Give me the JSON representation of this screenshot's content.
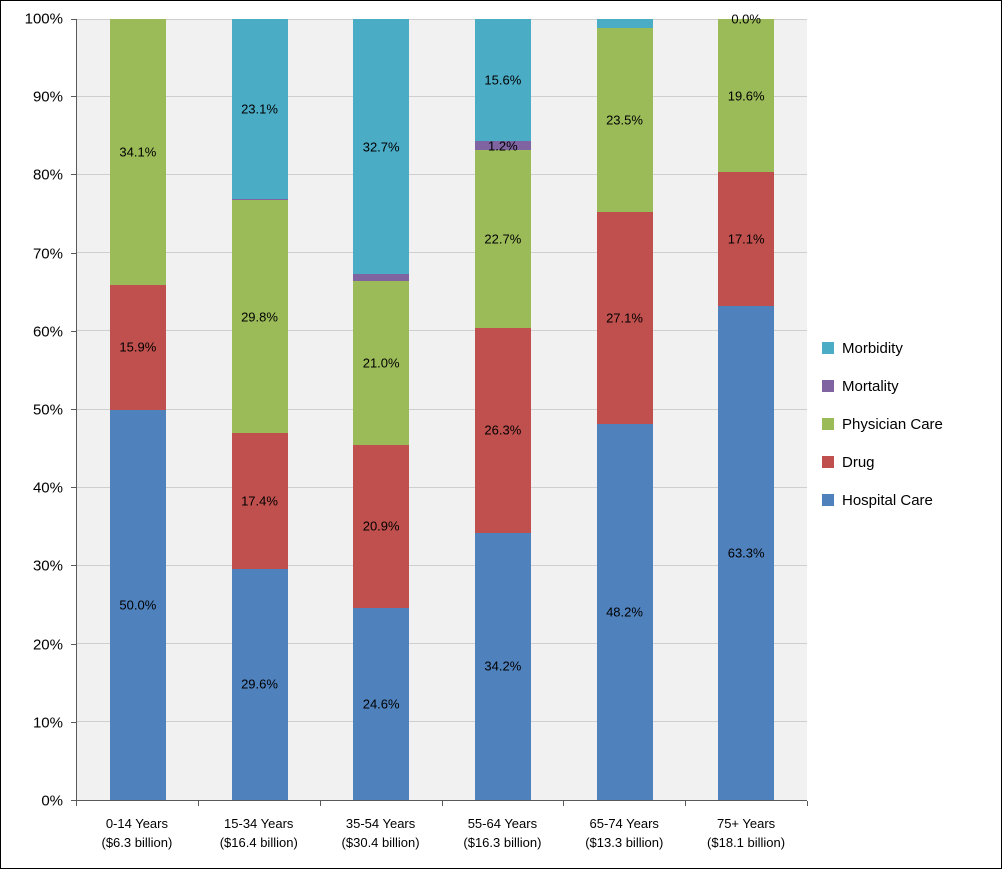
{
  "chart_data": {
    "type": "bar",
    "stacked": true,
    "units": "percent",
    "title": "",
    "xlabel": "",
    "ylabel": "",
    "ylim": [
      0,
      100
    ],
    "ytick_step": 10,
    "ytick_labels": [
      "0%",
      "10%",
      "20%",
      "30%",
      "40%",
      "50%",
      "60%",
      "70%",
      "80%",
      "90%",
      "100%"
    ],
    "grid": true,
    "plot_bg": "#F1F1F1",
    "gridline_color": "#CFCFCF",
    "axis_color": "#595959",
    "categories": [
      {
        "line1": "0-14 Years",
        "line2": "($6.3 billion)"
      },
      {
        "line1": "15-34 Years",
        "line2": "($16.4 billion)"
      },
      {
        "line1": "35-54 Years",
        "line2": "($30.4 billion)"
      },
      {
        "line1": "55-64 Years",
        "line2": "($16.3 billion)"
      },
      {
        "line1": "65-74 Years",
        "line2": "($13.3 billion)"
      },
      {
        "line1": "75+ Years",
        "line2": "($18.1 billion)"
      }
    ],
    "series": [
      {
        "name": "Hospital Care",
        "color": "#4F81BD",
        "values": [
          50.0,
          29.6,
          24.6,
          34.2,
          48.2,
          63.3
        ],
        "labels": [
          "50.0%",
          "29.6%",
          "24.6%",
          "34.2%",
          "48.2%",
          "63.3%"
        ]
      },
      {
        "name": "Drug",
        "color": "#C0504D",
        "values": [
          15.9,
          17.4,
          20.9,
          26.3,
          27.1,
          17.1
        ],
        "labels": [
          "15.9%",
          "17.4%",
          "20.9%",
          "26.3%",
          "27.1%",
          "17.1%"
        ]
      },
      {
        "name": "Physician Care",
        "color": "#9BBB59",
        "values": [
          34.1,
          29.8,
          21.0,
          22.7,
          23.5,
          19.6
        ],
        "labels": [
          "34.1%",
          "29.8%",
          "21.0%",
          "22.7%",
          "23.5%",
          "19.6%"
        ]
      },
      {
        "name": "Mortality",
        "color": "#8064A2",
        "values": [
          0.0,
          0.1,
          0.8,
          1.2,
          0.0,
          0.0
        ],
        "labels": [
          null,
          null,
          null,
          "1.2%",
          null,
          null
        ]
      },
      {
        "name": "Morbidity",
        "color": "#4BACC6",
        "values": [
          0.0,
          23.1,
          32.7,
          15.6,
          1.2,
          0.0
        ],
        "labels": [
          null,
          "23.1%",
          "32.7%",
          "15.6%",
          null,
          "0.0%"
        ]
      }
    ],
    "legend": {
      "position": "right",
      "items": [
        "Morbidity",
        "Mortality",
        "Physician Care",
        "Drug",
        "Hospital Care"
      ]
    }
  }
}
